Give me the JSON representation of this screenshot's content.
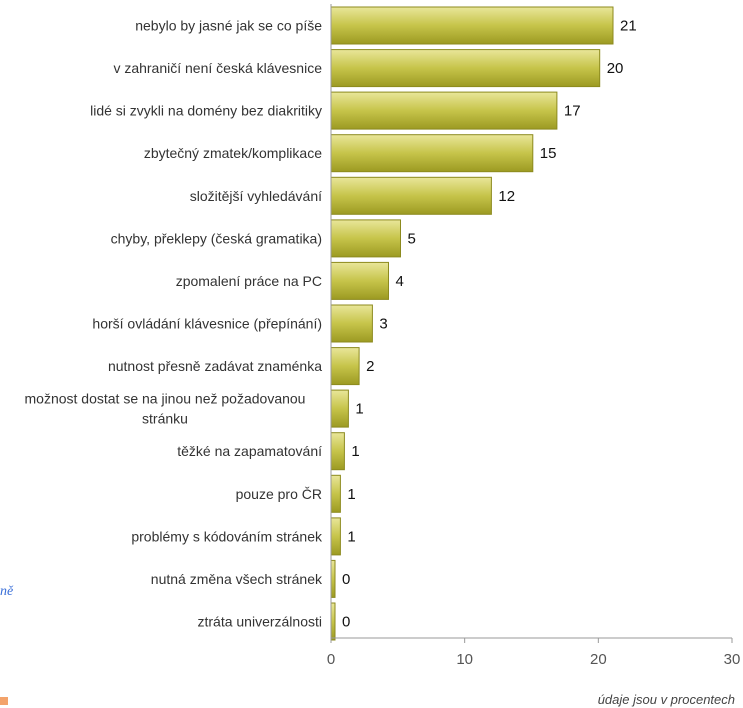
{
  "edge_text": "ně",
  "footnote": "údaje jsou v procentech",
  "colors": {
    "bar_light": "#e9e69a",
    "bar_mid": "#c6c44a",
    "bar_dark": "#9c9a22",
    "bar_border": "#8c8a1e"
  },
  "chart_data": {
    "type": "bar",
    "orientation": "horizontal",
    "categories": [
      "nebylo by jasné jak se co píše",
      "v zahraničí není česká klávesnice",
      "lidé si zvykli na domény bez diakritiky",
      "zbytečný zmatek/komplikace",
      "složitější vyhledávání",
      "chyby, překlepy (česká gramatika)",
      "zpomalení práce na PC",
      "horší ovládání klávesnice (přepínání)",
      "nutnost přesně zadávat znaménka",
      "možnost dostat se na jinou než požadovanou stránku",
      "těžké na zapamatování",
      "pouze pro ČR",
      "problémy s kódováním stránek",
      "nutná změna všech stránek",
      "ztráta univerzálnosti"
    ],
    "category_lines": [
      [
        "nebylo by jasné jak se co píše"
      ],
      [
        "v zahraničí není česká klávesnice"
      ],
      [
        "lidé si zvykli na domény bez diakritiky"
      ],
      [
        "zbytečný zmatek/komplikace"
      ],
      [
        "složitější vyhledávání"
      ],
      [
        "chyby, překlepy (česká gramatika)"
      ],
      [
        "zpomalení práce na PC"
      ],
      [
        "horší ovládání klávesnice (přepínání)"
      ],
      [
        "nutnost přesně zadávat znaménka"
      ],
      [
        "možnost dostat se na jinou než požadovanou",
        "stránku"
      ],
      [
        "těžké na zapamatování"
      ],
      [
        "pouze pro ČR"
      ],
      [
        "problémy s kódováním stránek"
      ],
      [
        "nutná změna všech stránek"
      ],
      [
        "ztráta univerzálnosti"
      ]
    ],
    "values": [
      21,
      20,
      17,
      15,
      12,
      5,
      4,
      3,
      2,
      1,
      1,
      1,
      1,
      0,
      0
    ],
    "bar_values": [
      21.1,
      20.1,
      16.9,
      15.1,
      12.0,
      5.2,
      4.3,
      3.1,
      2.1,
      1.3,
      1.0,
      0.7,
      0.7,
      0.3,
      0.3
    ],
    "xlim": [
      0,
      30
    ],
    "xticks": [
      0,
      10,
      20,
      30
    ],
    "xlabel": "",
    "ylabel": "",
    "title": "",
    "grid": false,
    "legend": "none"
  }
}
